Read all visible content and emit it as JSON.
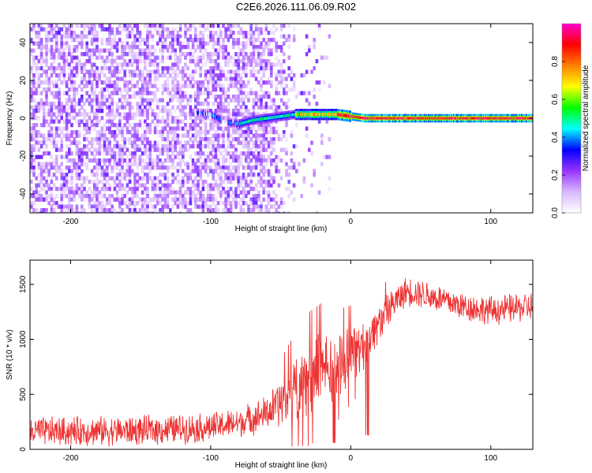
{
  "title": "C2E6.2026.111.06.09.R02",
  "chart_data": [
    {
      "type": "heatmap",
      "xlabel": "Height of straight line (km)",
      "ylabel": "Frequency (Hz)",
      "xlim": [
        -229,
        130
      ],
      "ylim": [
        -50,
        50
      ],
      "xticks": [
        -200,
        -100,
        0,
        100
      ],
      "yticks": [
        -40,
        -20,
        0,
        20,
        40
      ],
      "colorbar": {
        "label": "Normalized spectral amplitude",
        "range": [
          0,
          1
        ],
        "ticks": [
          "0.0",
          "0.2",
          "0.4",
          "0.6",
          "0.8"
        ],
        "tick_values": [
          0.0,
          0.2,
          0.4,
          0.6,
          0.8
        ],
        "colors": [
          "#ffffff",
          "#d9b8ff",
          "#9933ff",
          "#0000ff",
          "#00ffff",
          "#00ff00",
          "#ffff00",
          "#ff7f00",
          "#ff0000",
          "#ff00cc"
        ]
      },
      "ridge": {
        "x": [
          -110,
          -100,
          -90,
          -80,
          -70,
          -60,
          -50,
          -40,
          -30,
          -20,
          -10,
          0,
          10,
          20,
          40,
          60,
          80,
          100,
          130
        ],
        "freq_hz": [
          3,
          2,
          -2,
          -3,
          -1,
          0,
          1,
          2,
          2,
          2,
          2,
          1,
          0,
          0,
          0,
          0,
          0,
          0,
          0
        ]
      },
      "noise_cutoff_x": -65
    },
    {
      "type": "line",
      "xlabel": "Height of straight line (km)",
      "ylabel": "SNR (10 * v/v)",
      "xlim": [
        -229,
        130
      ],
      "ylim": [
        0,
        1720
      ],
      "xticks": [
        -200,
        -100,
        0,
        100
      ],
      "yticks": [
        0,
        500,
        1000,
        1500
      ],
      "color": "#ee3333",
      "envelope": {
        "x": [
          -229,
          -150,
          -100,
          -80,
          -60,
          -50,
          -40,
          -30,
          -20,
          -10,
          0,
          10,
          20,
          30,
          40,
          50,
          60,
          80,
          100,
          130
        ],
        "mean": [
          160,
          170,
          200,
          240,
          330,
          420,
          540,
          640,
          730,
          760,
          860,
          950,
          1150,
          1320,
          1440,
          1420,
          1380,
          1300,
          1260,
          1300
        ],
        "spread": [
          150,
          150,
          150,
          150,
          180,
          250,
          320,
          380,
          380,
          320,
          280,
          250,
          200,
          160,
          150,
          150,
          150,
          150,
          150,
          150
        ]
      }
    }
  ]
}
